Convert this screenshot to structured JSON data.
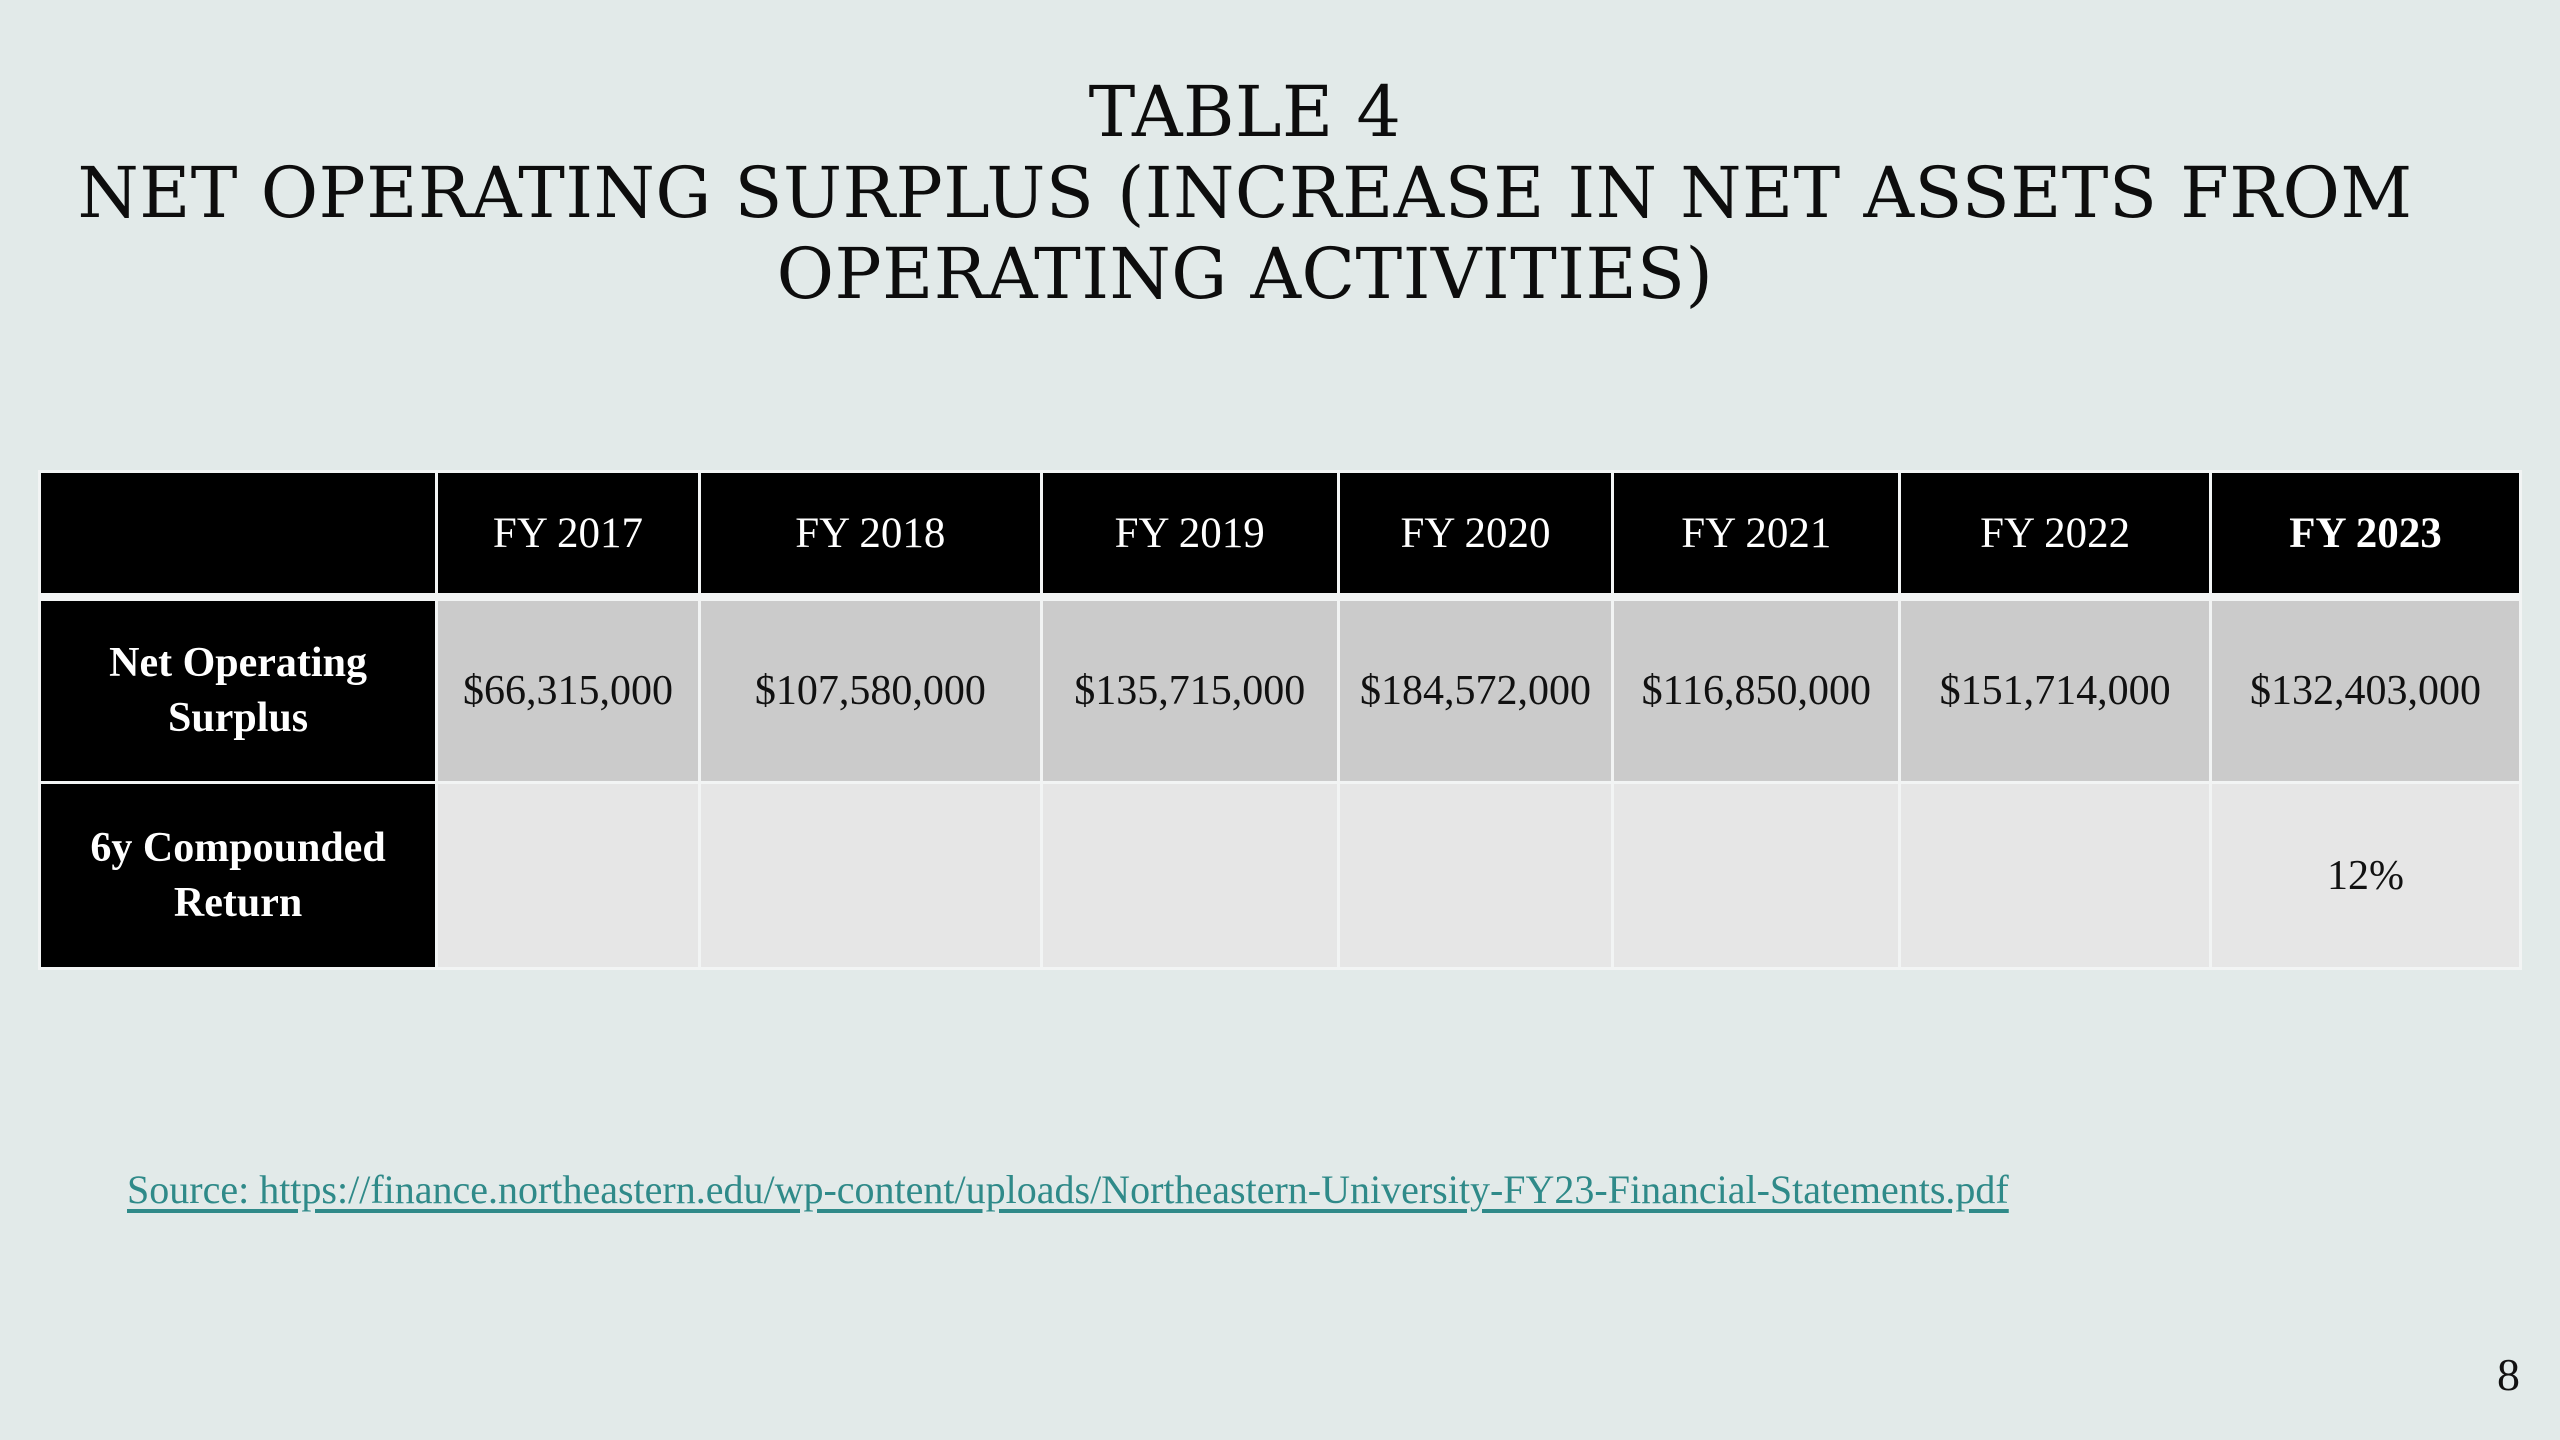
{
  "title": {
    "line1": "Table 4",
    "line2": "Net Operating Surplus (Increase in Net Assets from",
    "line3": "Operating Activities)"
  },
  "table": {
    "corner": "",
    "headers": [
      "FY 2017",
      "FY 2018",
      "FY 2019",
      "FY 2020",
      "FY 2021",
      "FY 2022",
      "FY 2023"
    ],
    "rows": [
      {
        "label_line1": "Net Operating",
        "label_line2": "Surplus",
        "cells": [
          "$66,315,000",
          "$107,580,000",
          "$135,715,000",
          "$184,572,000",
          "$116,850,000",
          "$151,714,000",
          "$132,403,000"
        ]
      },
      {
        "label_line1": "6y Compounded",
        "label_line2": "Return",
        "cells": [
          "",
          "",
          "",
          "",
          "",
          "",
          "12%"
        ]
      }
    ]
  },
  "source": {
    "text": "Source: https://finance.northeastern.edu/wp-content/uploads/Northeastern-University-FY23-Financial-Statements.pdf",
    "color": "#2f8a89"
  },
  "page_number": "8"
}
